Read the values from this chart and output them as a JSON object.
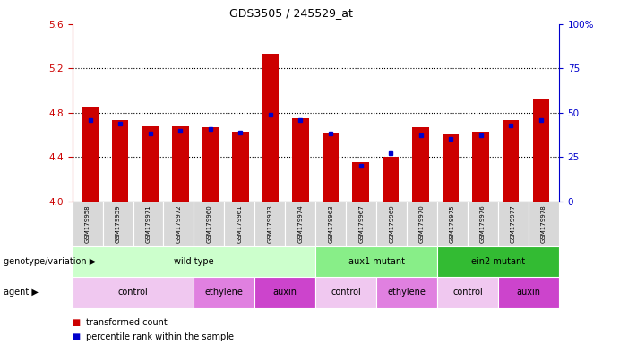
{
  "title": "GDS3505 / 245529_at",
  "samples": [
    "GSM179958",
    "GSM179959",
    "GSM179971",
    "GSM179972",
    "GSM179960",
    "GSM179961",
    "GSM179973",
    "GSM179974",
    "GSM179963",
    "GSM179967",
    "GSM179969",
    "GSM179970",
    "GSM179975",
    "GSM179976",
    "GSM179977",
    "GSM179978"
  ],
  "bar_values": [
    4.85,
    4.73,
    4.68,
    4.68,
    4.67,
    4.63,
    5.33,
    4.75,
    4.62,
    4.35,
    4.4,
    4.67,
    4.6,
    4.63,
    4.73,
    4.93
  ],
  "percentile_values": [
    46,
    44,
    38,
    40,
    41,
    39,
    49,
    46,
    38,
    20,
    27,
    37,
    35,
    37,
    43,
    46
  ],
  "ylim_left": [
    4.0,
    5.6
  ],
  "ylim_right": [
    0,
    100
  ],
  "yticks_left": [
    4.0,
    4.4,
    4.8,
    5.2,
    5.6
  ],
  "yticks_right": [
    0,
    25,
    50,
    75,
    100
  ],
  "ytick_labels_right": [
    "0",
    "25",
    "50",
    "75",
    "100%"
  ],
  "bar_color": "#cc0000",
  "dot_color": "#0000cc",
  "left_tick_color": "#cc0000",
  "right_tick_color": "#0000cc",
  "genotype_groups": [
    {
      "label": "wild type",
      "start": 0,
      "end": 7,
      "color": "#ccffcc"
    },
    {
      "label": "aux1 mutant",
      "start": 8,
      "end": 11,
      "color": "#88ee88"
    },
    {
      "label": "ein2 mutant",
      "start": 12,
      "end": 15,
      "color": "#33bb33"
    }
  ],
  "agent_groups": [
    {
      "label": "control",
      "start": 0,
      "end": 3,
      "color": "#f0c8f0"
    },
    {
      "label": "ethylene",
      "start": 4,
      "end": 5,
      "color": "#e080e0"
    },
    {
      "label": "auxin",
      "start": 6,
      "end": 7,
      "color": "#cc44cc"
    },
    {
      "label": "control",
      "start": 8,
      "end": 9,
      "color": "#f0c8f0"
    },
    {
      "label": "ethylene",
      "start": 10,
      "end": 11,
      "color": "#e080e0"
    },
    {
      "label": "control",
      "start": 12,
      "end": 13,
      "color": "#f0c8f0"
    },
    {
      "label": "auxin",
      "start": 14,
      "end": 15,
      "color": "#cc44cc"
    }
  ],
  "genotype_label": "genotype/variation",
  "agent_label": "agent",
  "legend_items": [
    {
      "label": "transformed count",
      "color": "#cc0000"
    },
    {
      "label": "percentile rank within the sample",
      "color": "#0000cc"
    }
  ],
  "bar_width": 0.55,
  "sample_bg": "#d8d8d8",
  "grid_dotted_values": [
    4.4,
    4.8,
    5.2
  ]
}
